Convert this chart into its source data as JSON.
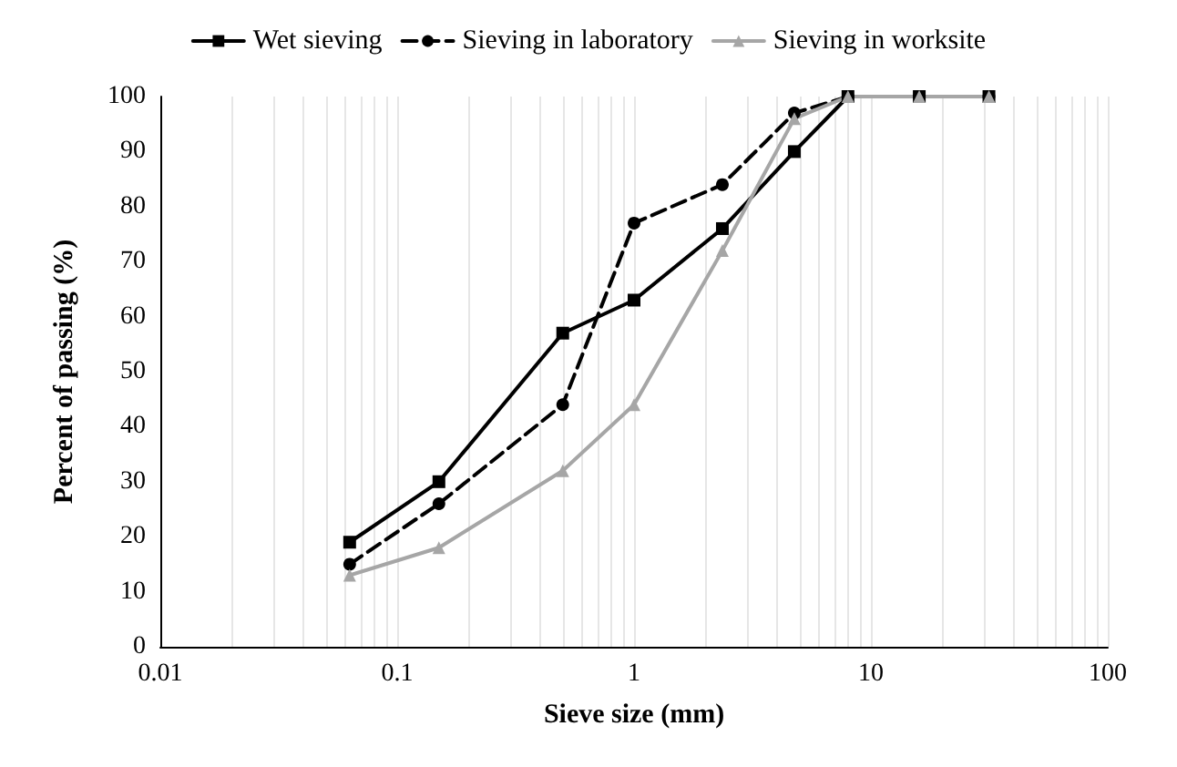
{
  "chart_data": {
    "type": "line",
    "xlabel": "Sieve size (mm)",
    "ylabel": "Percent of passing (%)",
    "x": [
      0.063,
      0.15,
      0.5,
      1,
      2.36,
      4.75,
      8,
      16,
      31.5
    ],
    "series": [
      {
        "name": "Wet sieving",
        "color": "#000000",
        "marker": "square",
        "line_style": "solid",
        "values": [
          19,
          30,
          57,
          63,
          76,
          90,
          100,
          100,
          100
        ]
      },
      {
        "name": "Sieving in laboratory",
        "color": "#000000",
        "marker": "circle",
        "line_style": "dashed",
        "values": [
          15,
          26,
          44,
          77,
          84,
          97,
          100,
          100,
          100
        ]
      },
      {
        "name": "Sieving in worksite",
        "color": "#a6a6a6",
        "marker": "triangle",
        "line_style": "solid",
        "values": [
          13,
          18,
          32,
          44,
          72,
          96,
          100,
          100,
          100
        ]
      }
    ],
    "log": "x",
    "xlim": [
      0.01,
      100
    ],
    "xticks": [
      0.01,
      0.1,
      1,
      10,
      100
    ],
    "ylim": [
      0,
      100
    ],
    "yticks": [
      0,
      10,
      20,
      30,
      40,
      50,
      60,
      70,
      80,
      90,
      100
    ],
    "grid": "x",
    "legend": "top"
  }
}
